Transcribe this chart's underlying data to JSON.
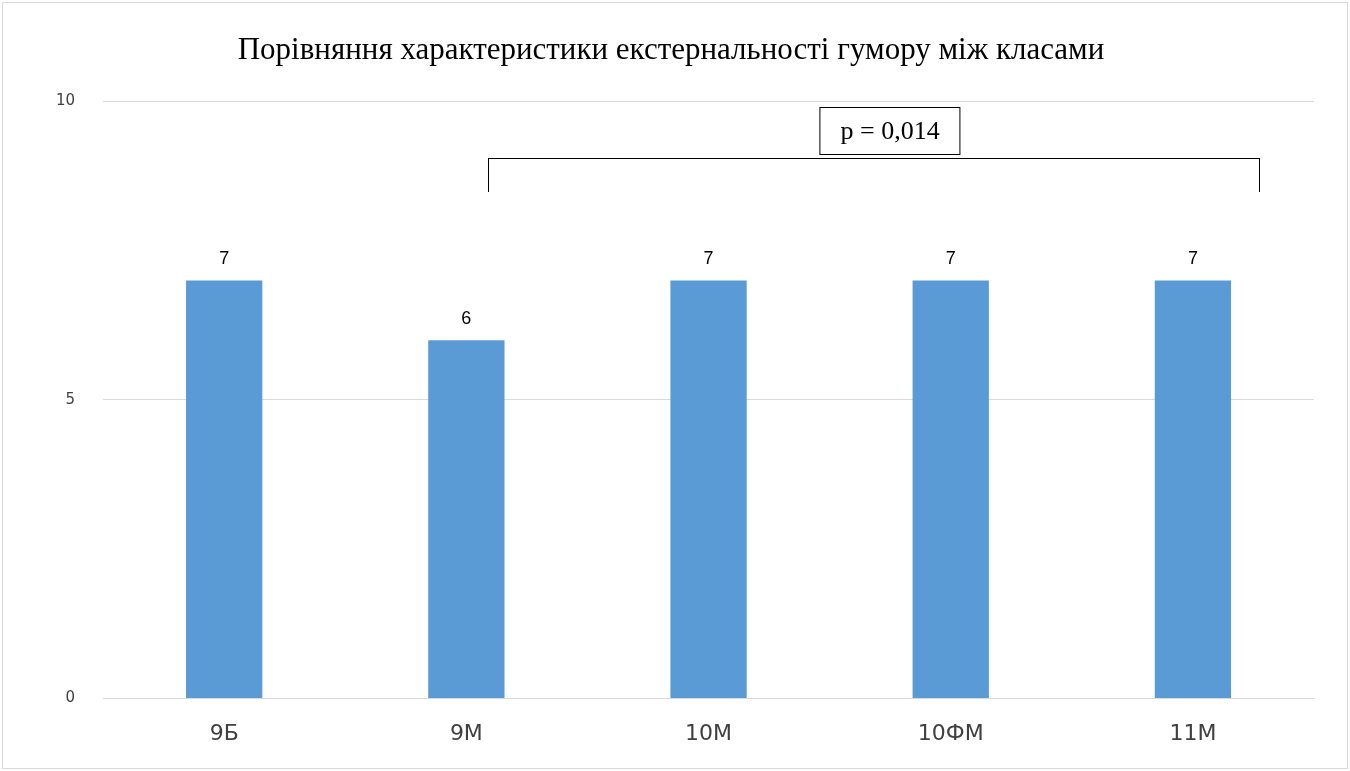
{
  "chart_data": {
    "type": "bar",
    "title": "Порівняння характеристики екстернальності гумору між класами",
    "categories": [
      "9Б",
      "9М",
      "10М",
      "10ФМ",
      "11М"
    ],
    "values": [
      7,
      6,
      7,
      7,
      7
    ],
    "color": "#5b9bd5",
    "ylim": [
      0,
      10
    ],
    "yticks": [
      0,
      5,
      10
    ],
    "grid": "y",
    "data_labels": true,
    "legend": false,
    "annotations": [
      "p = 0,014"
    ]
  }
}
